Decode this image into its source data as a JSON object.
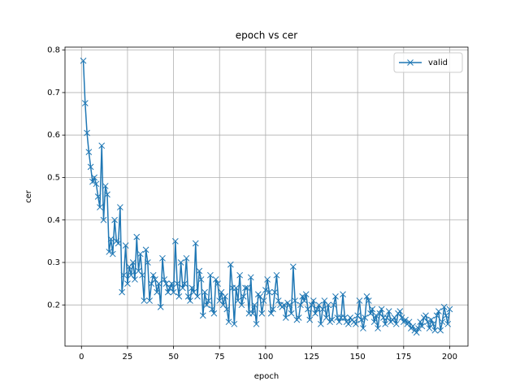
{
  "chart_data": {
    "type": "line",
    "title": "epoch vs cer",
    "x_label": "epoch",
    "y_label": "cer",
    "x": [
      1,
      2,
      3,
      4,
      5,
      6,
      7,
      8,
      9,
      10,
      11,
      12,
      13,
      14,
      15,
      16,
      17,
      18,
      19,
      20,
      21,
      22,
      23,
      24,
      25,
      26,
      27,
      28,
      29,
      30,
      31,
      32,
      33,
      34,
      35,
      36,
      37,
      38,
      39,
      40,
      41,
      42,
      43,
      44,
      45,
      46,
      47,
      48,
      49,
      50,
      51,
      52,
      53,
      54,
      55,
      56,
      57,
      58,
      59,
      60,
      61,
      62,
      63,
      64,
      65,
      66,
      67,
      68,
      69,
      70,
      71,
      72,
      73,
      74,
      75,
      76,
      77,
      78,
      79,
      80,
      81,
      82,
      83,
      84,
      85,
      86,
      87,
      88,
      89,
      90,
      91,
      92,
      93,
      94,
      95,
      96,
      97,
      98,
      99,
      100,
      101,
      102,
      103,
      104,
      105,
      106,
      107,
      108,
      109,
      110,
      111,
      112,
      113,
      114,
      115,
      116,
      117,
      118,
      119,
      120,
      121,
      122,
      123,
      124,
      125,
      126,
      127,
      128,
      129,
      130,
      131,
      132,
      133,
      134,
      135,
      136,
      137,
      138,
      139,
      140,
      141,
      142,
      143,
      144,
      145,
      146,
      147,
      148,
      149,
      150,
      151,
      152,
      153,
      154,
      155,
      156,
      157,
      158,
      159,
      160,
      161,
      162,
      163,
      164,
      165,
      166,
      167,
      168,
      169,
      170,
      171,
      172,
      173,
      174,
      175,
      176,
      177,
      178,
      179,
      180,
      181,
      182,
      183,
      184,
      185,
      186,
      187,
      188,
      189,
      190,
      191,
      192,
      193,
      194,
      195,
      196,
      197,
      198,
      199,
      200
    ],
    "series": [
      {
        "name": "valid",
        "color": "#1f77b4",
        "values": [
          0.775,
          0.675,
          0.605,
          0.56,
          0.525,
          0.49,
          0.5,
          0.485,
          0.455,
          0.43,
          0.575,
          0.4,
          0.48,
          0.46,
          0.325,
          0.355,
          0.32,
          0.4,
          0.35,
          0.345,
          0.43,
          0.23,
          0.27,
          0.34,
          0.25,
          0.29,
          0.27,
          0.3,
          0.26,
          0.36,
          0.28,
          0.32,
          0.27,
          0.21,
          0.33,
          0.3,
          0.21,
          0.25,
          0.27,
          0.26,
          0.23,
          0.25,
          0.195,
          0.31,
          0.26,
          0.25,
          0.23,
          0.24,
          0.25,
          0.23,
          0.35,
          0.25,
          0.22,
          0.3,
          0.24,
          0.25,
          0.31,
          0.22,
          0.21,
          0.24,
          0.23,
          0.345,
          0.22,
          0.28,
          0.26,
          0.175,
          0.23,
          0.2,
          0.21,
          0.27,
          0.19,
          0.18,
          0.26,
          0.25,
          0.21,
          0.23,
          0.2,
          0.22,
          0.19,
          0.16,
          0.295,
          0.24,
          0.155,
          0.24,
          0.21,
          0.27,
          0.2,
          0.22,
          0.24,
          0.24,
          0.18,
          0.265,
          0.18,
          0.2,
          0.155,
          0.225,
          0.22,
          0.18,
          0.21,
          0.235,
          0.26,
          0.23,
          0.18,
          0.19,
          0.23,
          0.27,
          0.21,
          0.2,
          0.195,
          0.2,
          0.17,
          0.205,
          0.2,
          0.18,
          0.29,
          0.21,
          0.165,
          0.17,
          0.2,
          0.22,
          0.21,
          0.225,
          0.19,
          0.165,
          0.2,
          0.21,
          0.18,
          0.19,
          0.2,
          0.155,
          0.19,
          0.21,
          0.17,
          0.2,
          0.16,
          0.165,
          0.2,
          0.22,
          0.17,
          0.16,
          0.17,
          0.225,
          0.17,
          0.16,
          0.155,
          0.17,
          0.165,
          0.16,
          0.155,
          0.175,
          0.21,
          0.165,
          0.145,
          0.17,
          0.22,
          0.21,
          0.18,
          0.19,
          0.16,
          0.175,
          0.145,
          0.18,
          0.19,
          0.17,
          0.155,
          0.17,
          0.185,
          0.16,
          0.165,
          0.17,
          0.155,
          0.18,
          0.185,
          0.17,
          0.16,
          0.165,
          0.155,
          0.16,
          0.145,
          0.15,
          0.14,
          0.135,
          0.145,
          0.16,
          0.15,
          0.17,
          0.175,
          0.16,
          0.145,
          0.165,
          0.155,
          0.14,
          0.175,
          0.185,
          0.14,
          0.16,
          0.195,
          0.175,
          0.155,
          0.19
        ]
      }
    ],
    "xlim": [
      -8.95,
      209.95
    ],
    "ylim": [
      0.103,
      0.807
    ],
    "xticks": [
      0,
      25,
      50,
      75,
      100,
      125,
      150,
      175,
      200
    ],
    "yticks": [
      0.2,
      0.3,
      0.4,
      0.5,
      0.6,
      0.7,
      0.8
    ],
    "grid": true,
    "legend_position": "upper right"
  }
}
